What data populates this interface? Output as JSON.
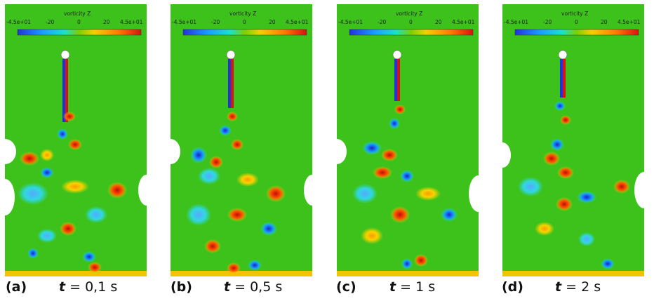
{
  "colorbar": {
    "title": "vorticity Z",
    "ticks": [
      "-4.5e+01",
      "-20",
      "0",
      "20",
      "4.5e+01"
    ],
    "colors": [
      "#2233dd",
      "#1a9cff",
      "#19e3c7",
      "#7ed000",
      "#f2d000",
      "#ff7a00",
      "#d61212"
    ]
  },
  "panels": [
    {
      "label": "(a)",
      "t": "t",
      "eq": " = 0,1 s"
    },
    {
      "label": "(b)",
      "t": "t",
      "eq": " = 0,5 s"
    },
    {
      "label": "(c)",
      "t": "t",
      "eq": " = 1 s"
    },
    {
      "label": "(d)",
      "t": "t",
      "eq": " = 2 s"
    }
  ]
}
